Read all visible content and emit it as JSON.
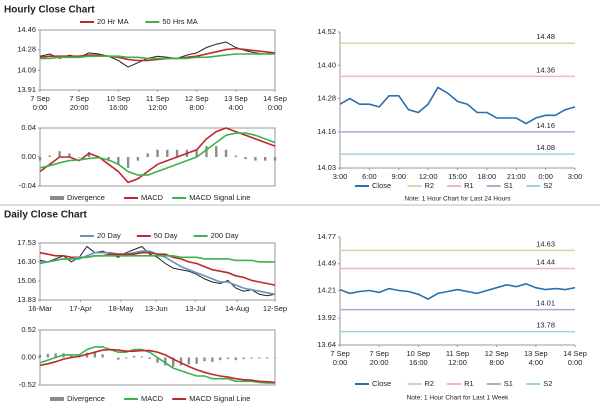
{
  "section_titles": [
    "Hourly Close Chart",
    "Daily Close Chart"
  ],
  "chart_data": [
    {
      "type": "line",
      "legend": "top",
      "x": [
        0,
        5,
        10,
        15,
        20,
        25,
        30,
        35,
        40,
        45,
        50,
        55,
        60,
        65,
        70,
        75,
        80,
        85,
        90,
        95,
        100,
        105,
        110,
        115,
        120
      ],
      "xlim": [
        0,
        120
      ],
      "xticks": [
        {
          "value": 0,
          "label": [
            "7 Sep",
            "0:00"
          ]
        },
        {
          "value": 20,
          "label": [
            "7 Sep",
            "20:00"
          ]
        },
        {
          "value": 40,
          "label": [
            "10 Sep",
            "16:00"
          ]
        },
        {
          "value": 60,
          "label": [
            "11 Sep",
            "12:00"
          ]
        },
        {
          "value": 80,
          "label": [
            "12 Sep",
            "8:00"
          ]
        },
        {
          "value": 100,
          "label": [
            "13 Sep",
            "4:00"
          ]
        },
        {
          "value": 120,
          "label": [
            "14 Sep",
            "0:00"
          ]
        }
      ],
      "ylim": [
        13.91,
        14.46
      ],
      "yticks": [
        13.91,
        14.09,
        14.28,
        14.46
      ],
      "series": [
        {
          "color": "#222222",
          "values": [
            14.22,
            14.24,
            14.2,
            14.23,
            14.21,
            14.25,
            14.24,
            14.22,
            14.18,
            14.12,
            14.16,
            14.2,
            14.22,
            14.21,
            14.2,
            14.23,
            14.25,
            14.3,
            14.33,
            14.35,
            14.3,
            14.27,
            14.25,
            14.24,
            14.25
          ]
        },
        {
          "name": "20 Hr MA",
          "color": "#c0282d",
          "values": [
            14.21,
            14.22,
            14.22,
            14.22,
            14.22,
            14.23,
            14.23,
            14.22,
            14.21,
            14.19,
            14.18,
            14.18,
            14.19,
            14.2,
            14.2,
            14.21,
            14.22,
            14.24,
            14.26,
            14.28,
            14.29,
            14.28,
            14.27,
            14.26,
            14.25
          ]
        },
        {
          "name": "50 Hrs MA",
          "color": "#3cb44b",
          "values": [
            14.2,
            14.2,
            14.21,
            14.21,
            14.21,
            14.22,
            14.22,
            14.22,
            14.22,
            14.21,
            14.21,
            14.2,
            14.2,
            14.2,
            14.2,
            14.2,
            14.21,
            14.21,
            14.22,
            14.23,
            14.24,
            14.24,
            14.24,
            14.24,
            14.24
          ]
        }
      ]
    },
    {
      "type": "line",
      "legend": "bottom",
      "x": [
        0,
        5,
        10,
        15,
        20,
        25,
        30,
        35,
        40,
        45,
        50,
        55,
        60,
        65,
        70,
        75,
        80,
        85,
        90,
        95,
        100,
        105,
        110,
        115,
        120
      ],
      "xlim": [
        0,
        120
      ],
      "ylim": [
        -0.04,
        0.04
      ],
      "yticks": [
        -0.04,
        {
          "value": 0,
          "label": "0.00"
        },
        0.04
      ],
      "series": [
        {
          "name": "Divergence",
          "kind": "bar",
          "color": "#8c8c8c",
          "values": [
            -0.005,
            0.002,
            0.008,
            0.005,
            -0.001,
            0.007,
            0.001,
            -0.006,
            -0.01,
            -0.015,
            -0.005,
            0.005,
            0.01,
            0.01,
            0.01,
            0.01,
            0.01,
            0.015,
            0.015,
            0.01,
            0.002,
            -0.003,
            -0.005,
            -0.005,
            -0.005
          ]
        },
        {
          "name": "MACD",
          "color": "#c0282d",
          "values": [
            -0.02,
            -0.01,
            0,
            0,
            -0.005,
            0.005,
            0,
            -0.01,
            -0.02,
            -0.035,
            -0.03,
            -0.02,
            -0.01,
            -0.005,
            0,
            0.005,
            0.01,
            0.025,
            0.035,
            0.04,
            0.035,
            0.03,
            0.025,
            0.02,
            0.015
          ]
        },
        {
          "name": "MACD Signal Line",
          "color": "#3cb44b",
          "values": [
            -0.015,
            -0.012,
            -0.008,
            -0.005,
            -0.004,
            -0.002,
            -0.001,
            -0.004,
            -0.01,
            -0.02,
            -0.025,
            -0.025,
            -0.02,
            -0.015,
            -0.01,
            -0.005,
            0,
            0.01,
            0.02,
            0.03,
            0.033,
            0.033,
            0.03,
            0.025,
            0.02
          ]
        }
      ]
    },
    {
      "type": "line",
      "legend": "bottom",
      "note": "Note: 1 Hour Chart for Last 24 Hours",
      "x": [
        0,
        1,
        2,
        3,
        4,
        5,
        6,
        7,
        8,
        9,
        10,
        11,
        12,
        13,
        14,
        15,
        16,
        17,
        18,
        19,
        20,
        21,
        22,
        23,
        24
      ],
      "xlim": [
        0,
        24
      ],
      "xticks": [
        {
          "value": 0,
          "label": "3:00"
        },
        {
          "value": 3,
          "label": "6:00"
        },
        {
          "value": 6,
          "label": "9:00"
        },
        {
          "value": 9,
          "label": "12:00"
        },
        {
          "value": 12,
          "label": "15:00"
        },
        {
          "value": 15,
          "label": "18:00"
        },
        {
          "value": 18,
          "label": "21:00"
        },
        {
          "value": 21,
          "label": "0:00"
        },
        {
          "value": 24,
          "label": "3:00"
        }
      ],
      "ylim": [
        14.03,
        14.52
      ],
      "yticks": [
        14.03,
        14.16,
        14.28,
        {
          "value": 14.4,
          "label": "14.40"
        },
        14.52
      ],
      "series": [
        {
          "name": "Close",
          "color": "#2a6fb0",
          "values": [
            14.26,
            14.28,
            14.26,
            14.26,
            14.25,
            14.29,
            14.29,
            14.24,
            14.23,
            14.26,
            14.32,
            14.3,
            14.27,
            14.26,
            14.23,
            14.23,
            14.21,
            14.21,
            14.21,
            14.19,
            14.21,
            14.22,
            14.22,
            14.24,
            14.25
          ]
        }
      ],
      "levels": [
        {
          "name": "R2",
          "color": "#c5e0a5",
          "value": 14.48
        },
        {
          "name": "R1",
          "color": "#f4b6b6",
          "value": 14.36
        },
        {
          "name": "S1",
          "color": "#b9a5d6",
          "value": 14.16
        },
        {
          "name": "S2",
          "color": "#9fd3e0",
          "value": 14.08
        }
      ]
    },
    {
      "type": "line",
      "legend": "top",
      "x": [
        0,
        6,
        12,
        18,
        24,
        30,
        36,
        42,
        48,
        54,
        60,
        66,
        72,
        78,
        84,
        90,
        96,
        102,
        108,
        114,
        120,
        126,
        132,
        138,
        144,
        150,
        156,
        162,
        168,
        174,
        180
      ],
      "xlim": [
        0,
        180
      ],
      "xticks": [
        {
          "value": 0,
          "label": "16-Mar"
        },
        {
          "value": 31,
          "label": "17-Apr"
        },
        {
          "value": 62,
          "label": "18-May"
        },
        {
          "value": 89,
          "label": "13-Jun"
        },
        {
          "value": 119,
          "label": "13-Jul"
        },
        {
          "value": 151,
          "label": "14-Aug"
        },
        {
          "value": 180,
          "label": "12-Sep"
        }
      ],
      "ylim": [
        13.83,
        17.53
      ],
      "yticks": [
        13.83,
        15.06,
        {
          "value": 16.3,
          "label": "16.30"
        },
        17.53
      ],
      "series": [
        {
          "color": "#222222",
          "values": [
            16.4,
            16.3,
            16.5,
            16.7,
            16.3,
            16.6,
            17.3,
            16.9,
            17.0,
            16.8,
            16.6,
            16.9,
            17.1,
            17.3,
            16.8,
            16.6,
            16.2,
            15.9,
            15.8,
            15.7,
            15.5,
            15.2,
            15.0,
            14.9,
            15.1,
            14.6,
            14.4,
            14.5,
            14.2,
            14.1,
            14.2
          ]
        },
        {
          "name": "20 Day",
          "color": "#6b8fc7",
          "values": [
            16.3,
            16.3,
            16.4,
            16.5,
            16.5,
            16.5,
            16.7,
            16.9,
            16.9,
            16.9,
            16.8,
            16.8,
            16.9,
            17.0,
            17.0,
            16.8,
            16.6,
            16.3,
            16.0,
            15.8,
            15.6,
            15.4,
            15.2,
            15.0,
            15.0,
            14.8,
            14.6,
            14.5,
            14.4,
            14.3,
            14.2
          ]
        },
        {
          "name": "50 Day",
          "color": "#c0282d",
          "values": [
            16.9,
            16.8,
            16.7,
            16.7,
            16.6,
            16.6,
            16.6,
            16.7,
            16.7,
            16.8,
            16.8,
            16.8,
            16.8,
            16.9,
            16.9,
            16.8,
            16.8,
            16.6,
            16.5,
            16.3,
            16.2,
            16.0,
            15.8,
            15.7,
            15.6,
            15.4,
            15.3,
            15.1,
            15.0,
            14.9,
            14.8
          ]
        },
        {
          "name": "200 Day",
          "color": "#3cb44b",
          "values": [
            16.2,
            16.3,
            16.4,
            16.5,
            16.5,
            16.6,
            16.6,
            16.7,
            16.7,
            16.7,
            16.7,
            16.7,
            16.7,
            16.7,
            16.7,
            16.7,
            16.7,
            16.7,
            16.6,
            16.6,
            16.6,
            16.5,
            16.5,
            16.5,
            16.5,
            16.4,
            16.4,
            16.4,
            16.3,
            16.3,
            16.3
          ]
        }
      ]
    },
    {
      "type": "line",
      "legend": "bottom",
      "x": [
        0,
        6,
        12,
        18,
        24,
        30,
        36,
        42,
        48,
        54,
        60,
        66,
        72,
        78,
        84,
        90,
        96,
        102,
        108,
        114,
        120,
        126,
        132,
        138,
        144,
        150,
        156,
        162,
        168,
        174,
        180
      ],
      "xlim": [
        0,
        180
      ],
      "ylim": [
        -0.52,
        0.52
      ],
      "yticks": [
        -0.52,
        {
          "value": 0,
          "label": "0.00"
        },
        0.52
      ],
      "series": [
        {
          "name": "Divergence",
          "kind": "bar",
          "color": "#8c8c8c",
          "values": [
            0.05,
            0.07,
            0.08,
            0.08,
            0.05,
            0.03,
            0.09,
            0.1,
            0.06,
            0,
            -0.04,
            -0.02,
            0.03,
            0.02,
            -0.03,
            -0.1,
            -0.15,
            -0.17,
            -0.15,
            -0.13,
            -0.12,
            -0.07,
            -0.08,
            -0.05,
            -0.03,
            -0.05,
            -0.03,
            -0.02,
            -0.02,
            -0.02,
            -0.01
          ]
        },
        {
          "name": "MACD",
          "color": "#3cb44b",
          "values": [
            -0.1,
            -0.05,
            0,
            0.05,
            0.05,
            0.05,
            0.15,
            0.2,
            0.2,
            0.15,
            0.1,
            0.1,
            0.15,
            0.15,
            0.1,
            0,
            -0.1,
            -0.2,
            -0.25,
            -0.3,
            -0.35,
            -0.35,
            -0.4,
            -0.4,
            -0.4,
            -0.45,
            -0.45,
            -0.45,
            -0.47,
            -0.48,
            -0.48
          ]
        },
        {
          "name": "MACD Signal Line",
          "color": "#c0282d",
          "values": [
            -0.15,
            -0.12,
            -0.08,
            -0.03,
            0,
            0.02,
            0.06,
            0.1,
            0.14,
            0.15,
            0.14,
            0.12,
            0.12,
            0.13,
            0.13,
            0.1,
            0.05,
            -0.03,
            -0.1,
            -0.17,
            -0.23,
            -0.28,
            -0.32,
            -0.35,
            -0.37,
            -0.4,
            -0.42,
            -0.43,
            -0.45,
            -0.46,
            -0.47
          ]
        }
      ]
    },
    {
      "type": "line",
      "legend": "bottom",
      "note": "Note: 1 Hour Chart for Last 1 Week",
      "x": [
        0,
        5,
        10,
        15,
        20,
        25,
        30,
        35,
        40,
        45,
        50,
        55,
        60,
        65,
        70,
        75,
        80,
        85,
        90,
        95,
        100,
        105,
        110,
        115,
        120
      ],
      "xlim": [
        0,
        120
      ],
      "xticks": [
        {
          "value": 0,
          "label": [
            "7 Sep",
            "0:00"
          ]
        },
        {
          "value": 20,
          "label": [
            "7 Sep",
            "20:00"
          ]
        },
        {
          "value": 40,
          "label": [
            "10 Sep",
            "16:00"
          ]
        },
        {
          "value": 60,
          "label": [
            "11 Sep",
            "12:00"
          ]
        },
        {
          "value": 80,
          "label": [
            "12 Sep",
            "8:00"
          ]
        },
        {
          "value": 100,
          "label": [
            "13 Sep",
            "4:00"
          ]
        },
        {
          "value": 120,
          "label": [
            "14 Sep",
            "0:00"
          ]
        }
      ],
      "ylim": [
        13.64,
        14.77
      ],
      "yticks": [
        13.64,
        13.92,
        14.21,
        14.49,
        14.77
      ],
      "series": [
        {
          "name": "Close",
          "color": "#2a6fb0",
          "values": [
            14.22,
            14.18,
            14.2,
            14.21,
            14.19,
            14.23,
            14.21,
            14.2,
            14.17,
            14.12,
            14.18,
            14.2,
            14.22,
            14.2,
            14.18,
            14.21,
            14.24,
            14.27,
            14.25,
            14.28,
            14.24,
            14.22,
            14.23,
            14.22,
            14.24
          ]
        }
      ],
      "levels": [
        {
          "name": "R2",
          "color": "#c5e0a5",
          "value": 14.63
        },
        {
          "name": "R1",
          "color": "#f4b6b6",
          "value": 14.44
        },
        {
          "name": "S1",
          "color": "#b9a5d6",
          "value": 14.01
        },
        {
          "name": "S2",
          "color": "#9fd3e0",
          "value": 13.78
        }
      ]
    }
  ]
}
